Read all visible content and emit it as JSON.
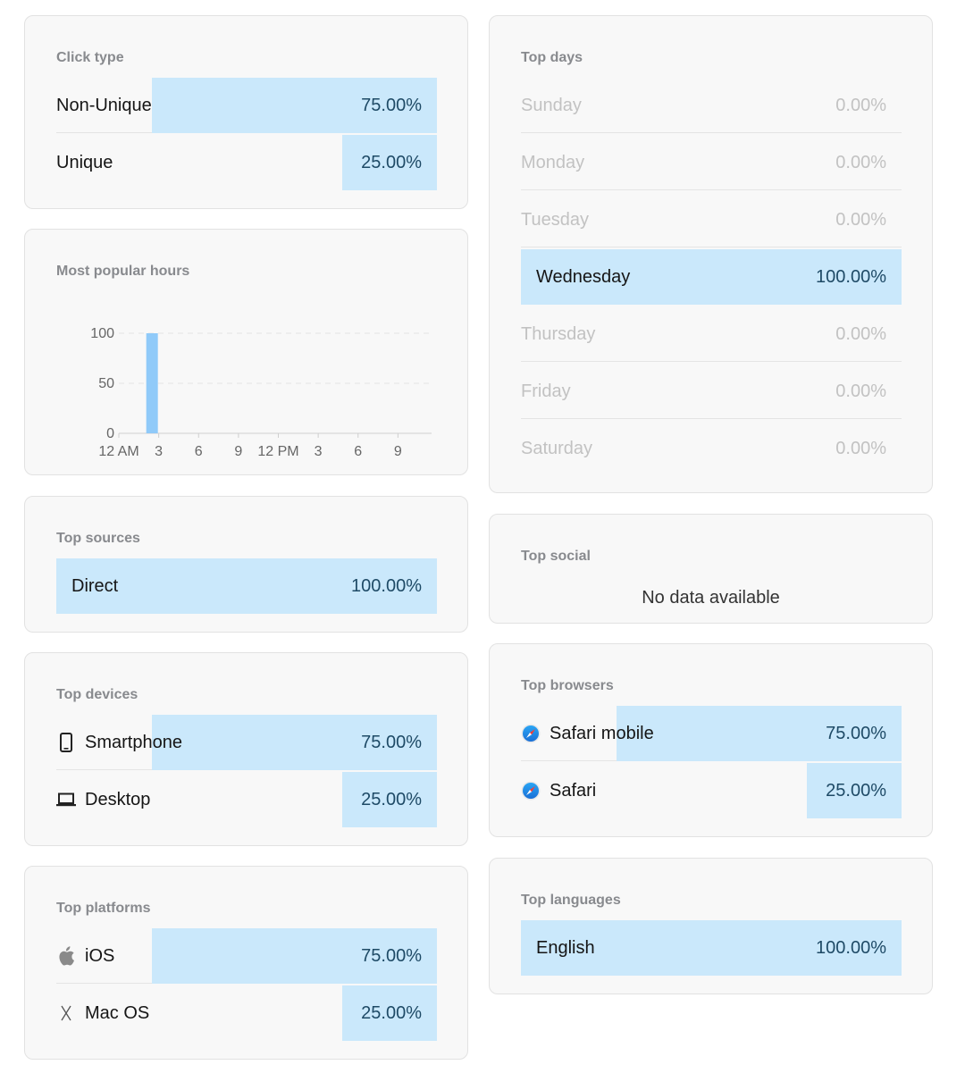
{
  "click_type": {
    "title": "Click type",
    "rows": [
      {
        "label": "Non-Unique",
        "pct": "75.00%",
        "fraction": 0.75
      },
      {
        "label": "Unique",
        "pct": "25.00%",
        "fraction": 0.25
      }
    ]
  },
  "popular_hours": {
    "title": "Most popular hours",
    "chart_data": {
      "type": "bar",
      "x": [
        2
      ],
      "values": [
        100
      ],
      "ylim": [
        0,
        100
      ],
      "yticks": [
        "0",
        "50",
        "100"
      ],
      "xticks": [
        "12 AM",
        "3",
        "6",
        "9",
        "12 PM",
        "3",
        "6",
        "9"
      ],
      "bar_color": "#90caf9",
      "grid": true
    }
  },
  "top_sources": {
    "title": "Top sources",
    "rows": [
      {
        "label": "Direct",
        "pct": "100.00%",
        "fraction": 1.0
      }
    ]
  },
  "top_devices": {
    "title": "Top devices",
    "rows": [
      {
        "label": "Smartphone",
        "pct": "75.00%",
        "fraction": 0.75,
        "icon": "smartphone-icon"
      },
      {
        "label": "Desktop",
        "pct": "25.00%",
        "fraction": 0.25,
        "icon": "laptop-icon"
      }
    ]
  },
  "top_platforms": {
    "title": "Top platforms",
    "rows": [
      {
        "label": "iOS",
        "pct": "75.00%",
        "fraction": 0.75,
        "icon": "apple-icon"
      },
      {
        "label": "Mac OS",
        "pct": "25.00%",
        "fraction": 0.25,
        "icon": "macos-x-icon"
      }
    ]
  },
  "top_days": {
    "title": "Top days",
    "rows": [
      {
        "label": "Sunday",
        "pct": "0.00%",
        "fraction": 0
      },
      {
        "label": "Monday",
        "pct": "0.00%",
        "fraction": 0
      },
      {
        "label": "Tuesday",
        "pct": "0.00%",
        "fraction": 0
      },
      {
        "label": "Wednesday",
        "pct": "100.00%",
        "fraction": 1.0
      },
      {
        "label": "Thursday",
        "pct": "0.00%",
        "fraction": 0
      },
      {
        "label": "Friday",
        "pct": "0.00%",
        "fraction": 0
      },
      {
        "label": "Saturday",
        "pct": "0.00%",
        "fraction": 0
      }
    ]
  },
  "top_social": {
    "title": "Top social",
    "empty_text": "No data available"
  },
  "top_browsers": {
    "title": "Top browsers",
    "rows": [
      {
        "label": "Safari mobile",
        "pct": "75.00%",
        "fraction": 0.75,
        "icon": "safari-icon"
      },
      {
        "label": "Safari",
        "pct": "25.00%",
        "fraction": 0.25,
        "icon": "safari-icon"
      }
    ]
  },
  "top_languages": {
    "title": "Top languages",
    "rows": [
      {
        "label": "English",
        "pct": "100.00%",
        "fraction": 1.0
      }
    ]
  },
  "colors": {
    "fill": "#cae8fb",
    "card_bg": "#f8f8f8",
    "muted_text": "#c2c2c2"
  }
}
